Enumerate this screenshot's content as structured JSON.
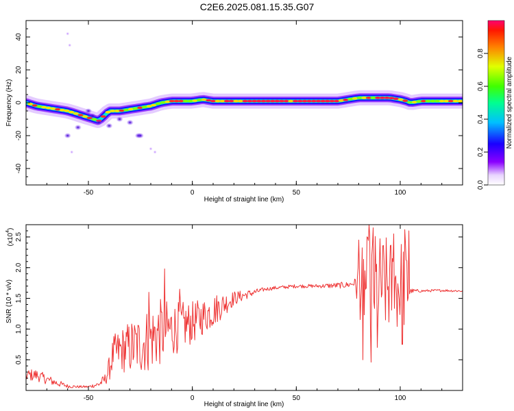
{
  "title": "C2E6.2025.081.15.35.G07",
  "colors": {
    "snr_line": "#ee3333",
    "ridge_core": "#ff1744",
    "background": "#ffffff"
  },
  "colorbar": {
    "label": "Normalized spectral amplitude",
    "ticks": [
      "0.0",
      "0.2",
      "0.4",
      "0.6",
      "0.8"
    ],
    "tick_values": [
      0.0,
      0.2,
      0.4,
      0.6,
      0.8
    ],
    "range": [
      0,
      1
    ],
    "colormap": "rainbow"
  },
  "chart_data": [
    {
      "type": "heatmap",
      "name": "spectrogram",
      "xlabel": "Height of straight line (km)",
      "ylabel": "Frequency (Hz)",
      "xlim": [
        -80,
        130
      ],
      "ylim": [
        -50,
        50
      ],
      "xticks": [
        -50,
        0,
        50,
        100
      ],
      "yticks": [
        -40,
        -20,
        0,
        20,
        40
      ],
      "xtick_labels": [
        "-50",
        "0",
        "50",
        "100"
      ],
      "ytick_labels": [
        "-40",
        "-20",
        "0",
        "20",
        "40"
      ],
      "ridge": {
        "x": [
          -80,
          -75,
          -70,
          -65,
          -60,
          -55,
          -50,
          -45,
          -40,
          -35,
          -30,
          -25,
          -20,
          -15,
          -10,
          -5,
          0,
          5,
          10,
          20,
          30,
          40,
          50,
          60,
          70,
          75,
          80,
          85,
          90,
          95,
          100,
          103,
          105,
          110,
          120,
          130
        ],
        "freq": [
          0,
          -2,
          -3,
          -4,
          -5,
          -7,
          -9,
          -11,
          -5,
          -5,
          -4,
          -3,
          -2,
          0,
          1,
          1,
          1,
          2,
          1,
          1,
          1,
          1,
          1,
          1,
          1,
          2,
          3,
          3,
          3,
          3,
          2,
          1,
          0,
          1,
          1,
          1
        ]
      },
      "scatter_blobs": {
        "x": [
          -60,
          -58,
          -55,
          -50,
          -48,
          -45,
          -40,
          -35,
          -30,
          -26,
          -25,
          -20,
          -18,
          -60,
          -59
        ],
        "freq": [
          -20,
          -30,
          -15,
          -5,
          -8,
          -12,
          -14,
          -10,
          -12,
          -20,
          -20,
          -28,
          -30,
          42,
          35
        ]
      }
    },
    {
      "type": "line",
      "name": "snr",
      "xlabel": "Height of straight line (km)",
      "ylabel": "SNR (10 * v/v)",
      "yunit": "(x10",
      "yunit_exp": "4",
      "yunit_close": ")",
      "xlim": [
        -80,
        130
      ],
      "ylim": [
        0,
        2.7
      ],
      "xticks": [
        -50,
        0,
        50,
        100
      ],
      "yticks": [
        0.5,
        1.0,
        1.5,
        2.0,
        2.5
      ],
      "xtick_labels": [
        "-50",
        "0",
        "50",
        "100"
      ],
      "ytick_labels": [
        "0.5",
        "1.0",
        "1.5",
        "2.0",
        "2.5"
      ],
      "envelope": {
        "x": [
          -80,
          -75,
          -70,
          -65,
          -60,
          -55,
          -50,
          -45,
          -42,
          -40,
          -38,
          -35,
          -30,
          -25,
          -20,
          -15,
          -10,
          -5,
          0,
          5,
          10,
          15,
          20,
          25,
          30,
          35,
          40,
          50,
          60,
          70,
          75,
          78,
          80,
          85,
          90,
          95,
          100,
          103,
          105,
          110,
          120,
          130
        ],
        "center": [
          0.25,
          0.25,
          0.18,
          0.12,
          0.07,
          0.06,
          0.06,
          0.1,
          0.18,
          0.35,
          0.6,
          0.65,
          0.7,
          0.75,
          0.85,
          0.95,
          1.0,
          1.05,
          1.1,
          1.2,
          1.3,
          1.4,
          1.5,
          1.55,
          1.6,
          1.65,
          1.67,
          1.7,
          1.7,
          1.71,
          1.72,
          1.75,
          1.7,
          1.7,
          1.7,
          1.7,
          1.7,
          1.7,
          1.62,
          1.62,
          1.63,
          1.62
        ],
        "amplitude": [
          0.1,
          0.1,
          0.08,
          0.06,
          0.03,
          0.02,
          0.02,
          0.05,
          0.1,
          0.2,
          0.3,
          0.35,
          0.45,
          0.5,
          0.55,
          0.55,
          0.45,
          0.4,
          0.35,
          0.3,
          0.28,
          0.2,
          0.12,
          0.08,
          0.05,
          0.03,
          0.03,
          0.03,
          0.03,
          0.05,
          0.05,
          0.06,
          0.5,
          0.9,
          0.85,
          0.8,
          0.8,
          0.8,
          0.04,
          0.02,
          0.02,
          0.02
        ]
      },
      "spikes": {
        "x": [
          -13.5,
          -21,
          -6,
          80,
          82,
          85,
          86,
          87,
          89,
          97,
          101,
          102,
          104
        ],
        "y": [
          1.98,
          1.6,
          1.65,
          2.45,
          0.5,
          2.7,
          0.46,
          2.65,
          0.7,
          2.55,
          0.75,
          2.62,
          2.6
        ]
      }
    }
  ]
}
